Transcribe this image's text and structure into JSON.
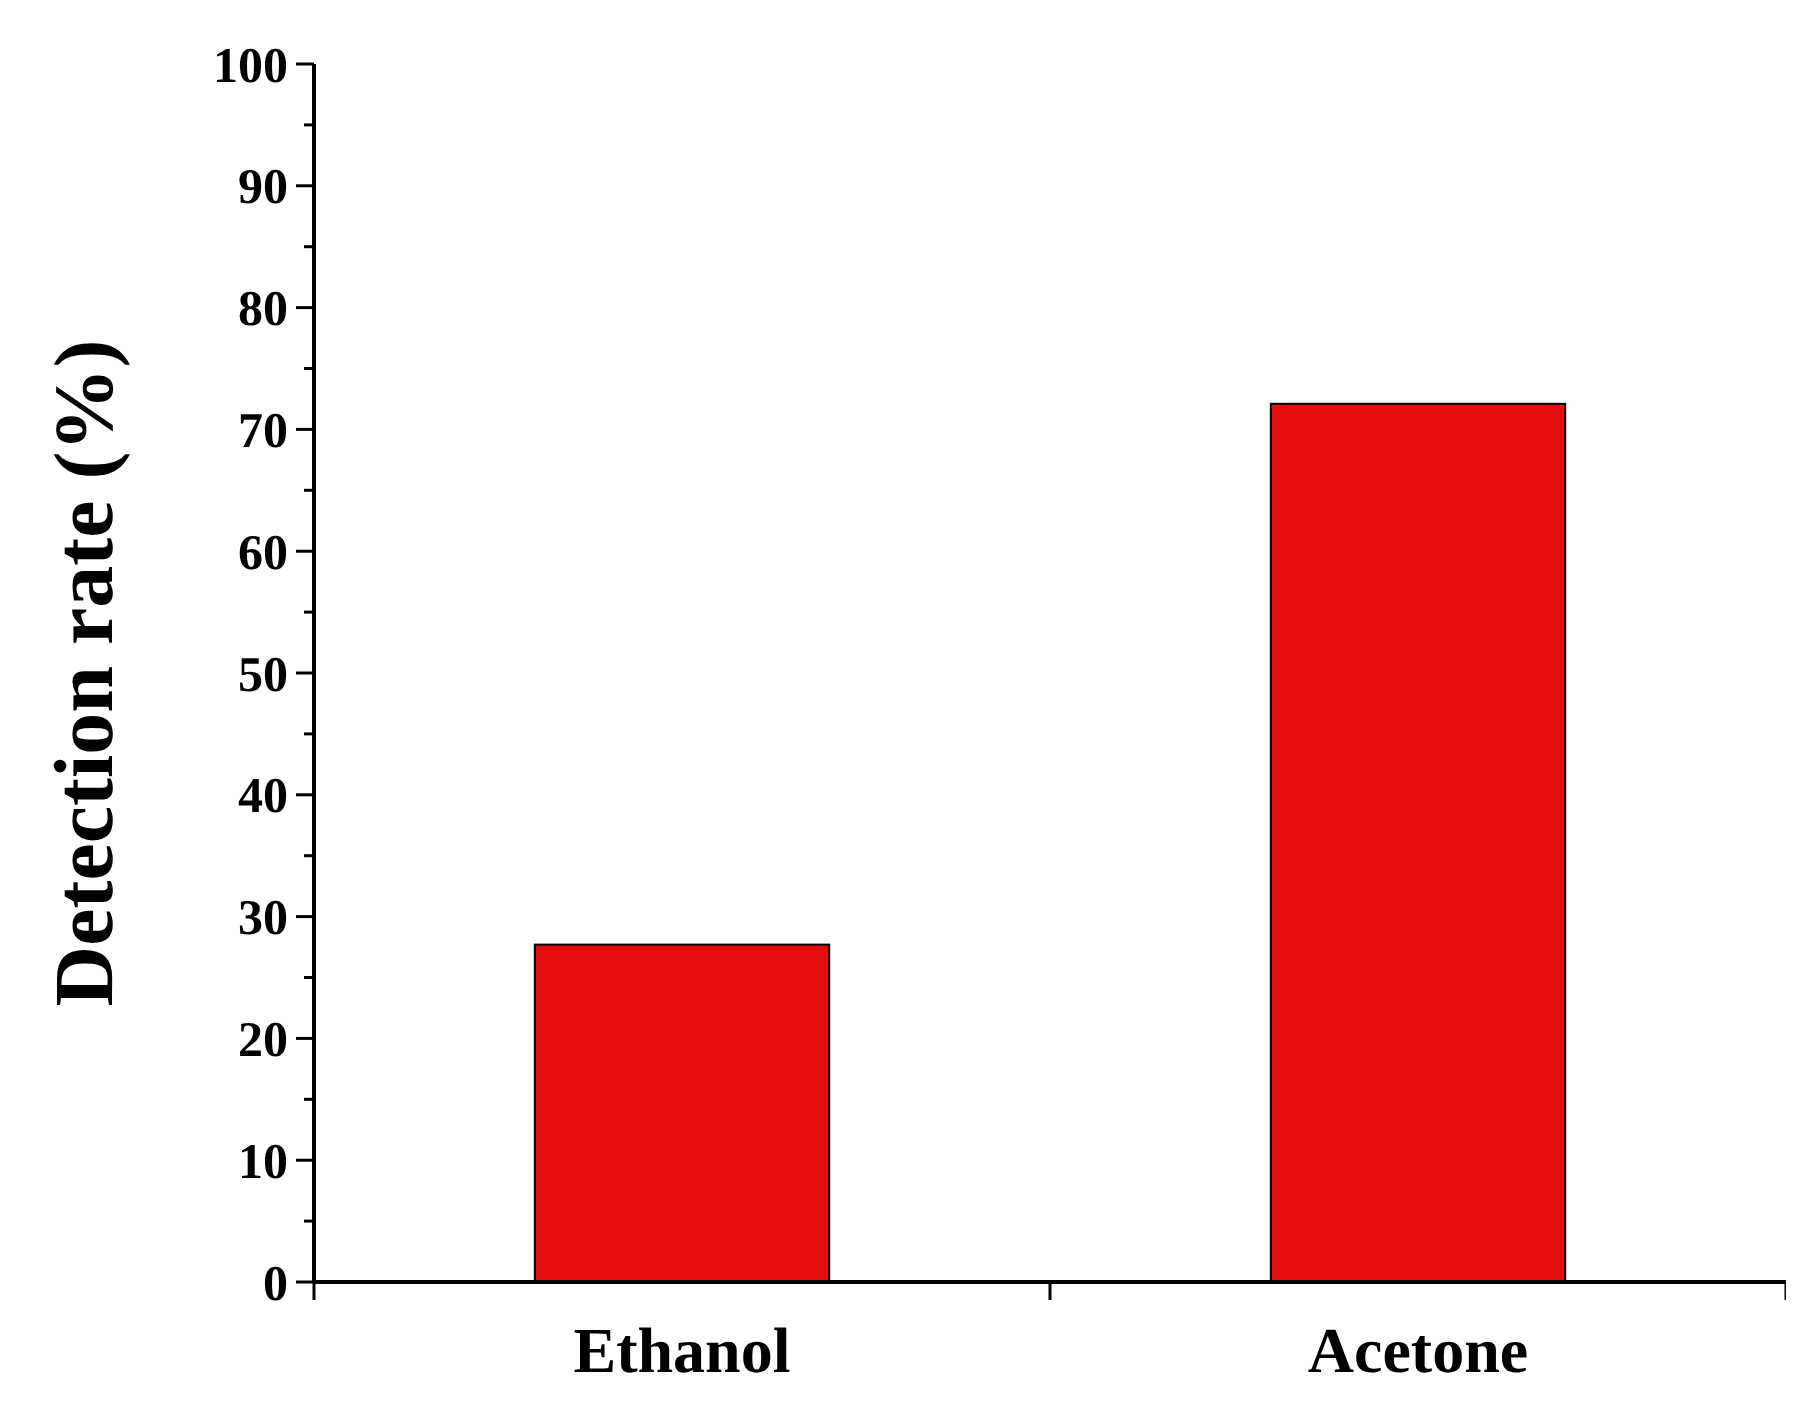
{
  "chart_data": {
    "type": "bar",
    "ylabel": "Detection rate (%)",
    "categories": [
      "Ethanol",
      "Acetone"
    ],
    "values": [
      27.7,
      72.1
    ],
    "color": "#e60d0d",
    "ylim": [
      0,
      100
    ],
    "yticks": [
      0,
      {
        "value": 5,
        "label": null
      },
      10,
      {
        "value": 15,
        "label": null
      },
      20,
      {
        "value": 25,
        "label": null
      },
      30,
      {
        "value": 35,
        "label": null
      },
      40,
      {
        "value": 45,
        "label": null
      },
      50,
      {
        "value": 55,
        "label": null
      },
      60,
      {
        "value": 65,
        "label": null
      },
      70,
      {
        "value": 75,
        "label": null
      },
      80,
      {
        "value": 85,
        "label": null
      },
      90,
      {
        "value": 95,
        "label": null
      },
      100
    ],
    "grid": false
  }
}
